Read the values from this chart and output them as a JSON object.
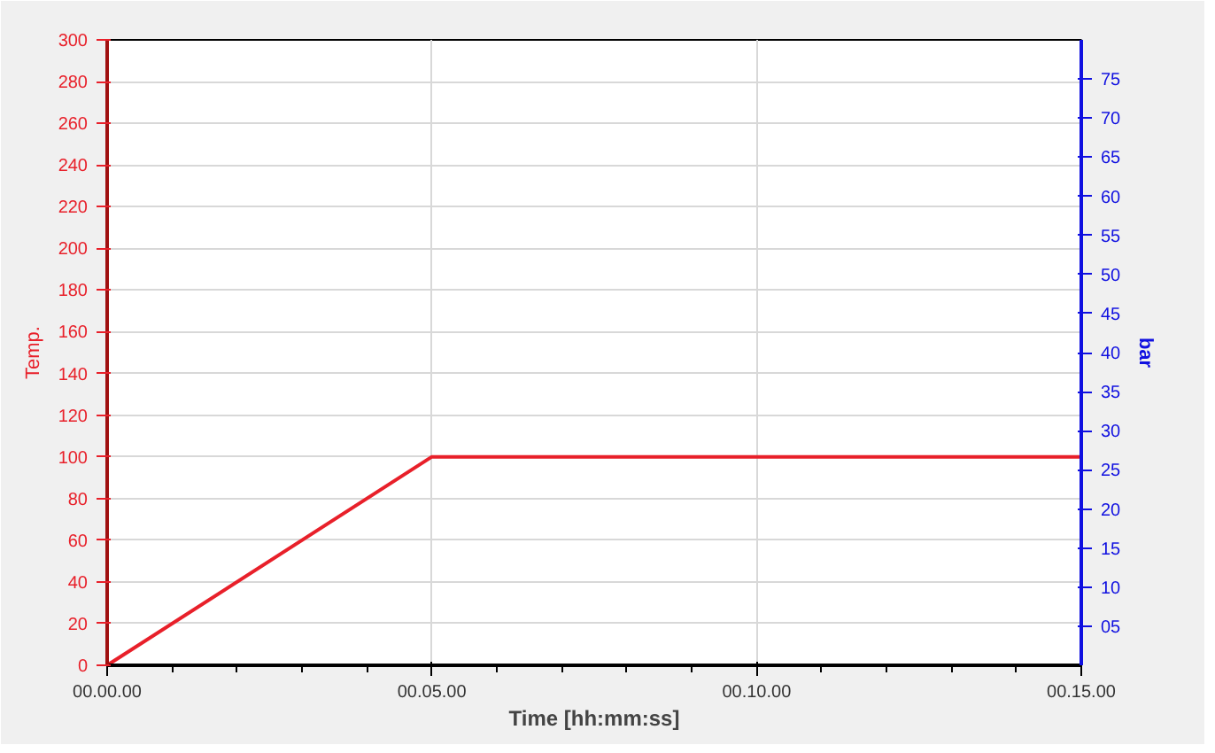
{
  "chart_data": {
    "type": "line",
    "xlabel": "Time [hh:mm:ss]",
    "ylabel": "Temp.",
    "y2label": "bar",
    "categories": [
      "00.00.00",
      "00.05.00",
      "00.10.00",
      "00.15.00"
    ],
    "series": [
      {
        "color": "#e8202a",
        "values": [
          0,
          100,
          100,
          100
        ]
      }
    ],
    "ylim": [
      0,
      300
    ],
    "yticks": [
      0,
      20,
      40,
      60,
      80,
      100,
      120,
      140,
      160,
      180,
      200,
      220,
      240,
      260,
      280,
      300
    ],
    "y2lim": [
      0,
      80
    ],
    "y2ticks": [
      {
        "value": 5,
        "label": "05"
      },
      10,
      15,
      20,
      25,
      30,
      35,
      40,
      45,
      50,
      55,
      60,
      65,
      70,
      75
    ],
    "grid": true,
    "marker": "none",
    "line_style": "solid"
  }
}
